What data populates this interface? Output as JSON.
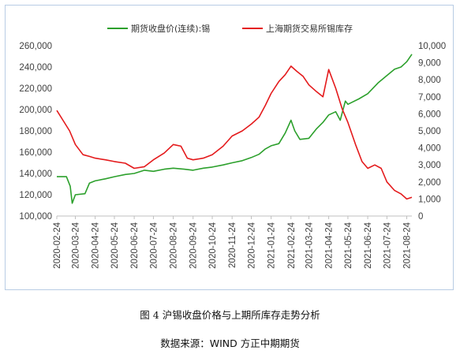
{
  "figure": {
    "caption": "图 4  沪锡收盘价格与上期所库存走势分析",
    "source": "数据来源：WIND 方正中期期货"
  },
  "chart_data": {
    "type": "line",
    "legend_position": "top",
    "grid": false,
    "x_tick_labels": [
      "2020-02-24",
      "2020-03-24",
      "2020-04-24",
      "2020-05-24",
      "2020-06-24",
      "2020-07-24",
      "2020-08-24",
      "2020-09-24",
      "2020-10-24",
      "2020-11-24",
      "2020-12-24",
      "2021-01-24",
      "2021-02-24",
      "2021-03-24",
      "2021-04-24",
      "2021-05-24",
      "2021-06-24",
      "2021-07-24",
      "2021-08-24"
    ],
    "x_range": [
      "2020-02-24",
      "2021-09-01"
    ],
    "y_left": {
      "range": [
        100000,
        260000
      ],
      "ticks": [
        "100,000",
        "120,000",
        "140,000",
        "160,000",
        "180,000",
        "200,000",
        "220,000",
        "240,000",
        "260,000"
      ]
    },
    "y_right": {
      "range": [
        0,
        10000
      ],
      "ticks": [
        "0",
        "1,000",
        "2,000",
        "3,000",
        "4,000",
        "5,000",
        "6,000",
        "7,000",
        "8,000",
        "9,000",
        "10,000"
      ]
    },
    "series": [
      {
        "name": "期货收盘价(连续):锡",
        "color": "#2ca02c",
        "axis": "left",
        "points": [
          [
            "2020-02-24",
            137000
          ],
          [
            "2020-03-10",
            137000
          ],
          [
            "2020-03-16",
            128000
          ],
          [
            "2020-03-19",
            112000
          ],
          [
            "2020-03-24",
            120000
          ],
          [
            "2020-04-08",
            121000
          ],
          [
            "2020-04-15",
            131000
          ],
          [
            "2020-04-24",
            133000
          ],
          [
            "2020-05-10",
            135000
          ],
          [
            "2020-05-24",
            137000
          ],
          [
            "2020-06-10",
            139000
          ],
          [
            "2020-06-24",
            140000
          ],
          [
            "2020-07-10",
            143000
          ],
          [
            "2020-07-24",
            142000
          ],
          [
            "2020-08-10",
            144000
          ],
          [
            "2020-08-24",
            145000
          ],
          [
            "2020-09-10",
            144000
          ],
          [
            "2020-09-24",
            143000
          ],
          [
            "2020-10-10",
            145000
          ],
          [
            "2020-10-24",
            146000
          ],
          [
            "2020-11-10",
            148000
          ],
          [
            "2020-11-24",
            150000
          ],
          [
            "2020-12-10",
            152000
          ],
          [
            "2020-12-24",
            155000
          ],
          [
            "2021-01-05",
            158000
          ],
          [
            "2021-01-15",
            163000
          ],
          [
            "2021-01-24",
            166000
          ],
          [
            "2021-02-05",
            168000
          ],
          [
            "2021-02-15",
            178000
          ],
          [
            "2021-02-24",
            190000
          ],
          [
            "2021-03-02",
            180000
          ],
          [
            "2021-03-10",
            172000
          ],
          [
            "2021-03-24",
            173000
          ],
          [
            "2021-04-05",
            182000
          ],
          [
            "2021-04-15",
            188000
          ],
          [
            "2021-04-24",
            195000
          ],
          [
            "2021-05-05",
            198000
          ],
          [
            "2021-05-12",
            190000
          ],
          [
            "2021-05-20",
            208000
          ],
          [
            "2021-05-24",
            205000
          ],
          [
            "2021-06-10",
            210000
          ],
          [
            "2021-06-24",
            215000
          ],
          [
            "2021-07-10",
            225000
          ],
          [
            "2021-07-24",
            232000
          ],
          [
            "2021-08-05",
            238000
          ],
          [
            "2021-08-15",
            240000
          ],
          [
            "2021-08-24",
            245000
          ],
          [
            "2021-09-01",
            252000
          ]
        ]
      },
      {
        "name": "上海期货交易所锡库存",
        "color": "#e41a1c",
        "axis": "right",
        "points": [
          [
            "2020-02-24",
            6200
          ],
          [
            "2020-03-05",
            5600
          ],
          [
            "2020-03-15",
            5000
          ],
          [
            "2020-03-24",
            4200
          ],
          [
            "2020-04-05",
            3600
          ],
          [
            "2020-04-15",
            3500
          ],
          [
            "2020-04-24",
            3400
          ],
          [
            "2020-05-10",
            3300
          ],
          [
            "2020-05-24",
            3200
          ],
          [
            "2020-06-10",
            3100
          ],
          [
            "2020-06-24",
            2800
          ],
          [
            "2020-07-10",
            2900
          ],
          [
            "2020-07-24",
            3300
          ],
          [
            "2020-08-10",
            3700
          ],
          [
            "2020-08-24",
            4200
          ],
          [
            "2020-09-05",
            4100
          ],
          [
            "2020-09-15",
            3400
          ],
          [
            "2020-09-24",
            3300
          ],
          [
            "2020-10-10",
            3400
          ],
          [
            "2020-10-24",
            3600
          ],
          [
            "2020-11-10",
            4100
          ],
          [
            "2020-11-24",
            4700
          ],
          [
            "2020-12-10",
            5000
          ],
          [
            "2020-12-24",
            5400
          ],
          [
            "2021-01-05",
            5800
          ],
          [
            "2021-01-15",
            6500
          ],
          [
            "2021-01-24",
            7200
          ],
          [
            "2021-02-05",
            7900
          ],
          [
            "2021-02-15",
            8300
          ],
          [
            "2021-02-24",
            8800
          ],
          [
            "2021-03-05",
            8500
          ],
          [
            "2021-03-15",
            8200
          ],
          [
            "2021-03-24",
            7700
          ],
          [
            "2021-04-05",
            7300
          ],
          [
            "2021-04-15",
            7000
          ],
          [
            "2021-04-24",
            8600
          ],
          [
            "2021-05-05",
            7500
          ],
          [
            "2021-05-15",
            6300
          ],
          [
            "2021-05-24",
            5500
          ],
          [
            "2021-06-05",
            4200
          ],
          [
            "2021-06-15",
            3200
          ],
          [
            "2021-06-24",
            2800
          ],
          [
            "2021-07-05",
            3000
          ],
          [
            "2021-07-15",
            2800
          ],
          [
            "2021-07-24",
            2000
          ],
          [
            "2021-08-05",
            1500
          ],
          [
            "2021-08-15",
            1300
          ],
          [
            "2021-08-24",
            1000
          ],
          [
            "2021-09-01",
            1100
          ]
        ]
      }
    ]
  }
}
